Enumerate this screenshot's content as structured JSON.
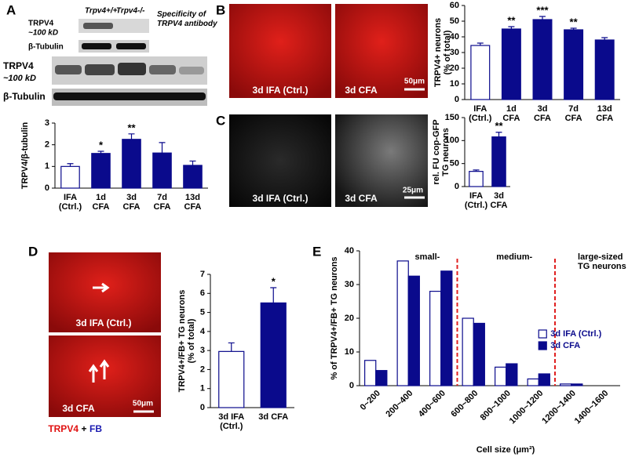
{
  "figure": {
    "panel_labels": [
      "A",
      "B",
      "C",
      "D",
      "E"
    ],
    "blot_top": {
      "title": "TRPV4",
      "size": "~100 kD",
      "lanes": [
        "Trpv4+/+",
        "Trpv4-/-"
      ],
      "note": "Specificity of\nTRPV4 antibody",
      "loading": "β-Tubulin"
    },
    "blot_main": {
      "title": "TRPV4",
      "size": "~100 kD",
      "loading": "β-Tubulin"
    },
    "images_b": [
      "3d IFA (Ctrl.)",
      "3d CFA"
    ],
    "scale_b": "50μm",
    "images_c": [
      "3d IFA (Ctrl.)",
      "3d CFA"
    ],
    "scale_c": "25μm",
    "images_d": [
      "3d IFA (Ctrl.)",
      "3d CFA"
    ],
    "scale_d": "50μm",
    "stain": [
      "TRPV4",
      "+",
      "FB"
    ]
  },
  "chart_data": [
    {
      "type": "bar",
      "ylabel": "TRPV4/β-tubulin",
      "categories": [
        "IFA\n(Ctrl.)",
        "1d\nCFA",
        "3d\nCFA",
        "7d\nCFA",
        "13d\nCFA"
      ],
      "values": [
        1.0,
        1.6,
        2.25,
        1.62,
        1.05
      ],
      "errors": [
        0.13,
        0.1,
        0.25,
        0.48,
        0.2
      ],
      "annotations": [
        null,
        "*",
        "**",
        null,
        null
      ],
      "colors": [
        "#ffffff",
        "#0a0a8c",
        "#0a0a8c",
        "#0a0a8c",
        "#0a0a8c"
      ],
      "edgecolor": "#0a0a8c",
      "ylim": [
        0,
        3
      ],
      "yticks": [
        0,
        1,
        2,
        3
      ]
    },
    {
      "type": "bar",
      "ylabel": "TRPV4+ neurons\n(% of total)",
      "categories": [
        "IFA\n(Ctrl.)",
        "1d\nCFA",
        "3d\nCFA",
        "7d\nCFA",
        "13d\nCFA"
      ],
      "values": [
        34.5,
        45,
        51,
        44.5,
        38
      ],
      "errors": [
        1.5,
        1.5,
        2,
        1,
        1.5
      ],
      "annotations": [
        null,
        "**",
        "***",
        "**",
        null
      ],
      "colors": [
        "#ffffff",
        "#0a0a8c",
        "#0a0a8c",
        "#0a0a8c",
        "#0a0a8c"
      ],
      "edgecolor": "#0a0a8c",
      "ylim": [
        0,
        60
      ],
      "yticks": [
        0,
        10,
        20,
        30,
        40,
        50,
        60
      ]
    },
    {
      "type": "bar",
      "ylabel": "rel. FU cop-GFP\nTG neurons",
      "categories": [
        "IFA\n(Ctrl.)",
        "3d\nCFA"
      ],
      "values": [
        33,
        108
      ],
      "errors": [
        3,
        10
      ],
      "annotations": [
        null,
        "**"
      ],
      "colors": [
        "#ffffff",
        "#0a0a8c"
      ],
      "edgecolor": "#0a0a8c",
      "ylim": [
        0,
        150
      ],
      "yticks": [
        0,
        50,
        100,
        150
      ]
    },
    {
      "type": "bar",
      "ylabel": "TRPV4+/FB+ TG neurons\n(% of total)",
      "categories": [
        "3d IFA\n(Ctrl.)",
        "3d CFA"
      ],
      "values": [
        2.95,
        5.5
      ],
      "errors": [
        0.45,
        0.8
      ],
      "annotations": [
        null,
        "*"
      ],
      "colors": [
        "#ffffff",
        "#0a0a8c"
      ],
      "edgecolor": "#0a0a8c",
      "ylim": [
        0,
        7
      ],
      "yticks": [
        0,
        1,
        2,
        3,
        4,
        5,
        6,
        7
      ]
    },
    {
      "type": "grouped-bar",
      "ylabel": "% of TRPV4+/FB+ TG neurons",
      "xlabel": "Cell size (μm²)",
      "categories": [
        "0~200",
        "200~400",
        "400~600",
        "600~800",
        "800~1000",
        "1000~1200",
        "1200~1400",
        "1400~1600"
      ],
      "series": [
        {
          "name": "3d IFA (Ctrl.)",
          "color": "#ffffff",
          "values": [
            7.5,
            37,
            28,
            20,
            5.5,
            2,
            0.5,
            0
          ]
        },
        {
          "name": "3d CFA",
          "color": "#0a0a8c",
          "values": [
            4.5,
            32.5,
            34,
            18.5,
            6.5,
            3.5,
            0.5,
            0
          ]
        }
      ],
      "edgecolor": "#0a0a8c",
      "annotations": [
        "small-",
        "medium-",
        "large-sized\nTG neurons"
      ],
      "ylim": [
        0,
        40
      ],
      "yticks": [
        0,
        10,
        20,
        30,
        40
      ],
      "legend": "right"
    }
  ]
}
